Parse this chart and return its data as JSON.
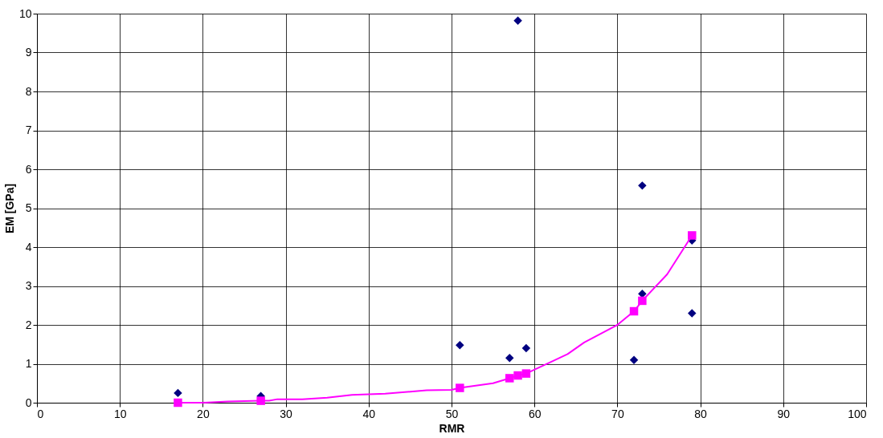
{
  "chart_data": {
    "type": "scatter",
    "xlabel": "RMR",
    "ylabel": "EM [GPa]",
    "xlim": [
      0,
      100
    ],
    "xticks": [
      0,
      10,
      20,
      30,
      40,
      50,
      60,
      70,
      80,
      90,
      100
    ],
    "ylim": [
      0,
      10
    ],
    "yticks": [
      0,
      1,
      2,
      3,
      4,
      5,
      6,
      7,
      8,
      9,
      10
    ],
    "grid": true,
    "legend": false,
    "series": [
      {
        "type": "scatter",
        "marker": "diamond",
        "color": "#000080",
        "x": [
          17,
          27,
          51,
          57,
          58,
          59,
          72,
          73,
          73,
          79,
          79
        ],
        "values": [
          0.25,
          0.17,
          1.48,
          1.15,
          9.82,
          1.4,
          1.1,
          5.58,
          2.8,
          4.17,
          2.3
        ]
      },
      {
        "type": "line",
        "marker": "none",
        "color": "#ff00ff",
        "x": [
          17,
          20,
          23,
          27,
          28,
          29,
          32,
          35,
          38,
          42,
          47,
          50,
          51,
          55,
          57,
          58,
          59,
          62,
          64,
          66,
          70,
          72,
          73,
          76,
          79
        ],
        "values": [
          0,
          0,
          0.03,
          0.05,
          0.05,
          0.09,
          0.09,
          0.13,
          0.2,
          0.23,
          0.32,
          0.33,
          0.38,
          0.5,
          0.63,
          0.7,
          0.75,
          1.05,
          1.25,
          1.55,
          2.0,
          2.35,
          2.62,
          3.3,
          4.3
        ]
      },
      {
        "type": "scatter",
        "marker": "square",
        "color": "#ff00ff",
        "x": [
          17,
          27,
          51,
          57,
          58,
          59,
          72,
          73,
          79
        ],
        "values": [
          0,
          0.05,
          0.38,
          0.63,
          0.7,
          0.75,
          2.35,
          2.62,
          4.3
        ]
      }
    ]
  }
}
